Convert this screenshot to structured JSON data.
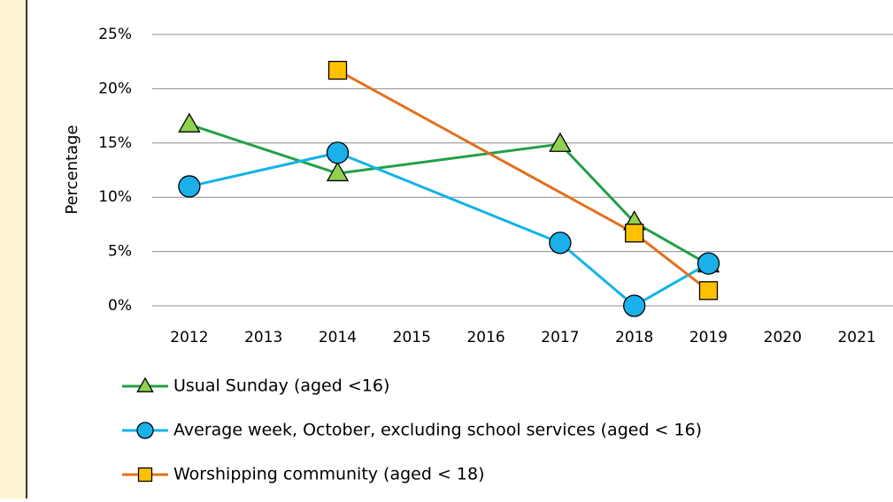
{
  "chart_data": {
    "type": "line",
    "ylabel": "Percentage",
    "xlim": [
      2011.5,
      2021.5
    ],
    "xticks": [
      2012,
      2013,
      2014,
      2015,
      2016,
      2017,
      2018,
      2019,
      2020,
      2021
    ],
    "ylim": [
      0,
      25
    ],
    "yticks": [
      {
        "value": 0,
        "label": "0%"
      },
      {
        "value": 5,
        "label": "5%"
      },
      {
        "value": 10,
        "label": "10%"
      },
      {
        "value": 15,
        "label": "15%"
      },
      {
        "value": 20,
        "label": "20%"
      },
      {
        "value": 25,
        "label": "25%"
      }
    ],
    "grid": true,
    "legend": "bottom",
    "series": [
      {
        "name": "Usual Sunday (aged <16)",
        "color": "#22a046",
        "marker": "triangle",
        "marker_color": "#92d050",
        "x": [
          2012,
          2014,
          2017,
          2018,
          2019
        ],
        "values": [
          16.7,
          12.2,
          14.9,
          7.7,
          3.8
        ]
      },
      {
        "name": "Average week, October, excluding school services (aged < 16)",
        "color": "#13b3e8",
        "marker": "circle",
        "marker_color": "#1ab0ea",
        "x": [
          2012,
          2014,
          2017,
          2018,
          2019
        ],
        "values": [
          11.0,
          14.1,
          5.8,
          0.0,
          3.9
        ]
      },
      {
        "name": "Worshipping community (aged < 18)",
        "color": "#e2701e",
        "marker": "square",
        "marker_color": "#ffc000",
        "x": [
          2014,
          2018,
          2019
        ],
        "values": [
          21.7,
          6.7,
          1.4
        ]
      }
    ]
  }
}
